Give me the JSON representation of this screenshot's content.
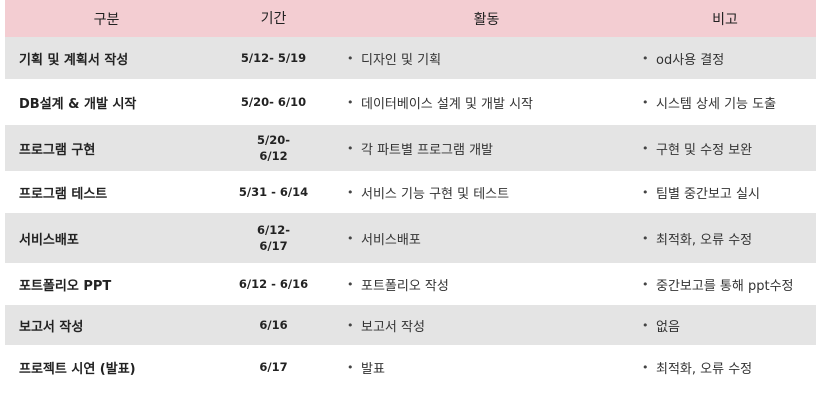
{
  "header": {
    "col1": "구분",
    "col2": "기간",
    "col3": "활동",
    "col4": "비고"
  },
  "rows": [
    {
      "category": "기획 및 계획서 작성",
      "period": "5/12- 5/19",
      "activity": "디자인 및 기획",
      "note": "od사용 결정"
    },
    {
      "category": "DB설계 & 개발 시작",
      "period": "5/20- 6/10",
      "activity": "데이터베이스 설계 및 개발 시작",
      "note": "시스템 상세 기능 도출"
    },
    {
      "category": "프로그램 구현",
      "period": "5/20-\n6/12",
      "activity": "각 파트별 프로그램 개발",
      "note": "구현 및 수정 보완"
    },
    {
      "category": "프로그램 테스트",
      "period": "5/31 - 6/14",
      "activity": "서비스  기능 구현 및 테스트",
      "note": "팀별 중간보고 실시"
    },
    {
      "category": "서비스배포",
      "period": "6/12-\n6/17",
      "activity": "서비스배포",
      "note": "최적화, 오류 수정"
    },
    {
      "category": "포트폴리오 PPT",
      "period": "6/12 - 6/16",
      "activity": "포트폴리오 작성",
      "note": "중간보고를 통해 ppt수정"
    },
    {
      "category": "보고서 작성",
      "period": "6/16",
      "activity": "보고서 작성",
      "note": "없음"
    },
    {
      "category": "프로젝트 시연 (발표)",
      "period": "6/17",
      "activity": "발표",
      "note": "최적화, 오류 수정"
    }
  ],
  "bullet_glyph": "•",
  "colors": {
    "header": "#f3cdd2",
    "shaded_row": "#e4e4e4",
    "plain_row": "#ffffff"
  }
}
